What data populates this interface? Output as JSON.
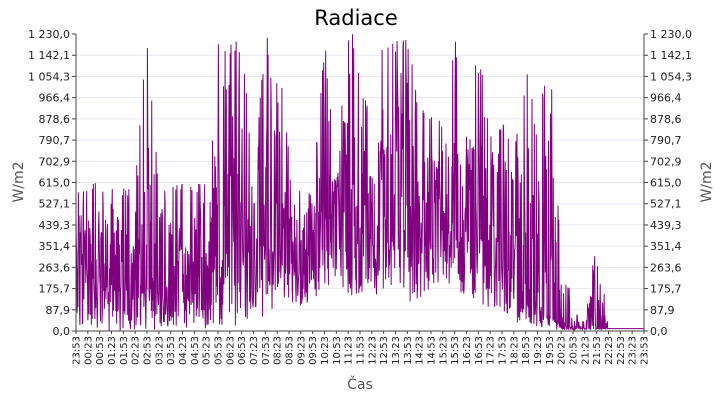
{
  "chart_data": {
    "type": "line",
    "title": "Radiace",
    "xlabel": "Čas",
    "ylabel_left": "W/m2",
    "ylabel_right": "W/m2",
    "ylim": [
      0,
      1230
    ],
    "y_ticks": [
      "0,0",
      "87,9",
      "175,7",
      "263,6",
      "351,4",
      "439,3",
      "527,1",
      "615,0",
      "702,9",
      "790,7",
      "878,6",
      "966,4",
      "1 054,3",
      "1 142,1",
      "1 230,0"
    ],
    "x_ticks": [
      "23:53",
      "00:23",
      "00:53",
      "01:23",
      "01:53",
      "02:23",
      "02:53",
      "03:23",
      "03:53",
      "04:23",
      "04:53",
      "05:23",
      "05:53",
      "06:23",
      "06:53",
      "07:23",
      "07:53",
      "08:23",
      "08:53",
      "09:23",
      "09:53",
      "10:23",
      "10:53",
      "11:23",
      "11:53",
      "12:23",
      "12:53",
      "13:23",
      "13:53",
      "14:23",
      "14:53",
      "15:23",
      "15:53",
      "16:23",
      "16:53",
      "17:23",
      "17:53",
      "18:23",
      "18:53",
      "19:23",
      "19:53",
      "20:23",
      "20:53",
      "21:23",
      "21:53",
      "22:23",
      "22:53",
      "23:23",
      "23:53"
    ],
    "grid": true,
    "series_color": "#800080",
    "series": [
      {
        "x": [
          "23:53",
          "00:23",
          "00:53",
          "01:23",
          "01:53",
          "02:23",
          "02:53",
          "03:23",
          "03:53",
          "04:23",
          "04:53",
          "05:23",
          "05:53",
          "06:23",
          "06:53",
          "07:23",
          "07:53",
          "08:23",
          "08:53",
          "09:23",
          "09:53",
          "10:23",
          "10:53",
          "11:23",
          "11:53",
          "12:23",
          "12:53",
          "13:23",
          "13:53",
          "14:23",
          "14:53",
          "15:23",
          "15:53",
          "16:23",
          "16:53",
          "17:23",
          "17:53",
          "18:23",
          "18:53",
          "19:23",
          "19:53",
          "20:23",
          "20:53",
          "21:23",
          "21:53",
          "22:23",
          "22:53",
          "23:23",
          "23:53"
        ],
        "envelope_max": [
          570,
          615,
          615,
          615,
          590,
          615,
          1230,
          615,
          615,
          615,
          615,
          615,
          1230,
          1230,
          1230,
          650,
          1230,
          1230,
          740,
          580,
          600,
          1230,
          700,
          1230,
          1230,
          740,
          1230,
          1230,
          1230,
          930,
          900,
          880,
          1230,
          900,
          1230,
          840,
          870,
          760,
          1100,
          850,
          1180,
          480,
          120,
          30,
          405,
          10,
          10,
          10,
          10
        ],
        "envelope_min": [
          5,
          5,
          5,
          0,
          0,
          5,
          5,
          0,
          0,
          0,
          5,
          5,
          5,
          10,
          20,
          40,
          60,
          110,
          120,
          90,
          130,
          150,
          160,
          150,
          130,
          140,
          160,
          150,
          120,
          100,
          150,
          160,
          180,
          140,
          120,
          90,
          60,
          40,
          20,
          10,
          5,
          5,
          5,
          5,
          5,
          10,
          10,
          10,
          10
        ],
        "typical": [
          200,
          220,
          180,
          200,
          200,
          200,
          220,
          200,
          180,
          200,
          200,
          220,
          280,
          300,
          340,
          330,
          360,
          360,
          300,
          230,
          280,
          330,
          400,
          450,
          480,
          480,
          450,
          460,
          430,
          420,
          450,
          470,
          480,
          460,
          430,
          380,
          330,
          260,
          200,
          130,
          70,
          30,
          10,
          10,
          10,
          10,
          10,
          10,
          10
        ]
      }
    ]
  }
}
